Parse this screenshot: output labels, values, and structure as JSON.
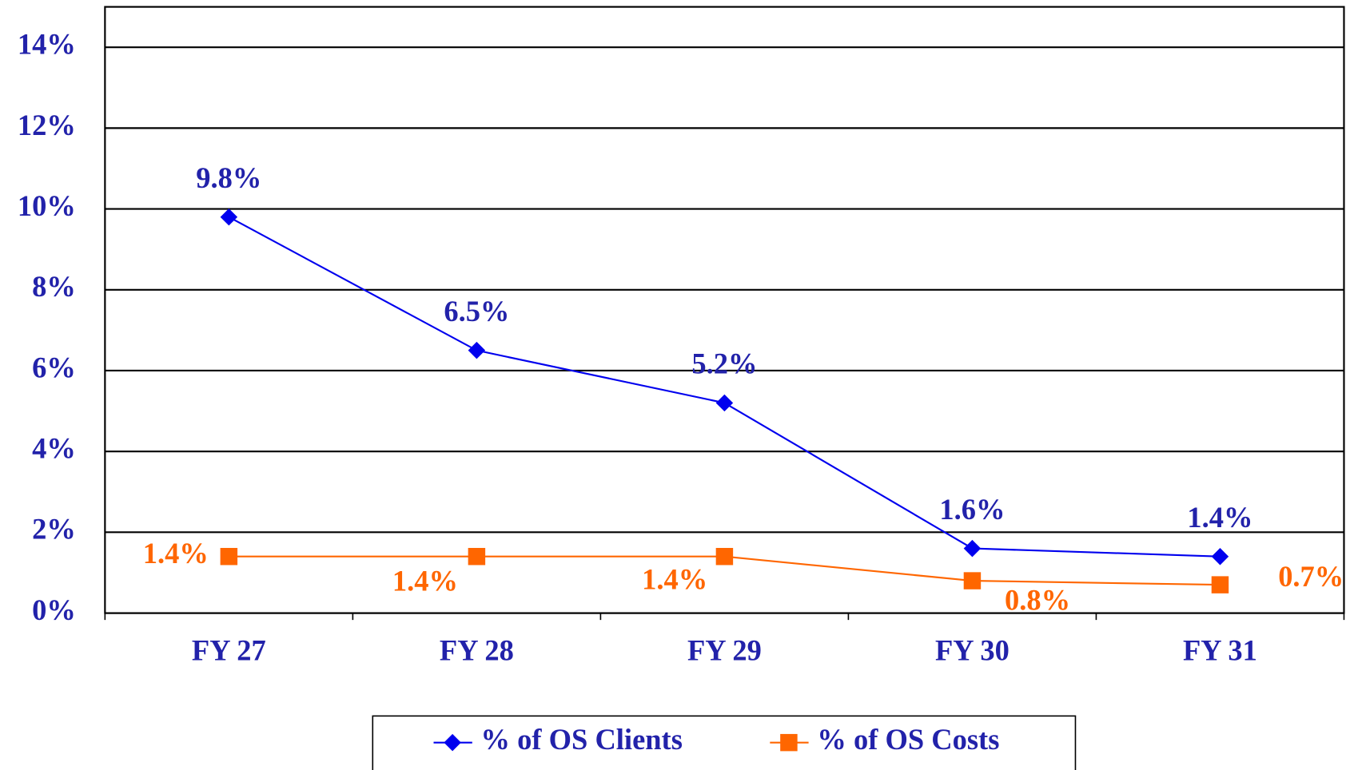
{
  "chart_data": {
    "type": "line",
    "categories": [
      "FY 27",
      "FY 28",
      "FY 29",
      "FY 30",
      "FY 31"
    ],
    "series": [
      {
        "name": "% of OS Clients",
        "color": "#0000ee",
        "marker": "diamond",
        "values": [
          9.8,
          6.5,
          5.2,
          1.6,
          1.4
        ],
        "value_labels": [
          "9.8%",
          "6.5%",
          "5.2%",
          "1.6%",
          "1.4%"
        ]
      },
      {
        "name": "% of OS Costs",
        "color": "#ff6600",
        "marker": "square",
        "values": [
          1.4,
          1.4,
          1.4,
          0.8,
          0.7
        ],
        "value_labels": [
          "1.4%",
          "1.4%",
          "1.4%",
          "0.8%",
          "0.7%"
        ]
      }
    ],
    "ylim": [
      0,
      15
    ],
    "yticks": [
      {
        "value": 0,
        "label": "0%"
      },
      {
        "value": 2,
        "label": "2%"
      },
      {
        "value": 4,
        "label": "4%"
      },
      {
        "value": 6,
        "label": "6%"
      },
      {
        "value": 8,
        "label": "8%"
      },
      {
        "value": 10,
        "label": "10%"
      },
      {
        "value": 12,
        "label": "12%"
      },
      {
        "value": 14,
        "label": "14%"
      }
    ],
    "grid": true,
    "legend": "bottom"
  }
}
